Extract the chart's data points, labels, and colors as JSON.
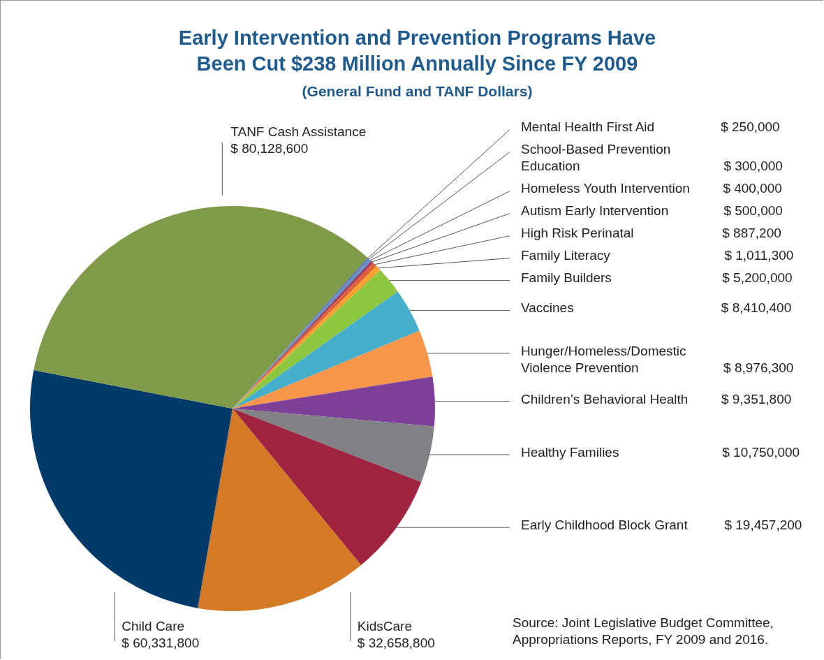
{
  "chart_data": {
    "type": "pie",
    "title": "Early Intervention and Prevention Programs Have Been Cut $238 Million Annually Since FY 2009",
    "subtitle": "(General Fund and TANF Dollars)",
    "categories": [
      "Mental Health First Aid",
      "School-Based Prevention Education",
      "Homeless Youth Intervention",
      "Autism Early Intervention",
      "High Risk Perinatal",
      "Family Literacy",
      "Family Builders",
      "Vaccines",
      "Hunger/Homeless/Domestic Violence Prevention",
      "Children’s Behavioral Health",
      "Healthy Families",
      "Early Childhood Block Grant",
      "KidsCare",
      "Child Care",
      "TANF Cash Assistance"
    ],
    "values": [
      250000,
      300000,
      400000,
      500000,
      887200,
      1011300,
      5200000,
      8410400,
      8976300,
      9351800,
      10750000,
      19457200,
      32658800,
      60331800,
      80128600
    ],
    "value_labels": [
      "$ 250,000",
      "$ 300,000",
      "$ 400,000",
      "$ 500,000",
      "$ 887,200",
      "$ 1,011,300",
      "$ 5,200,000",
      "$ 8,410,400",
      "$ 8,976,300",
      "$ 9,351,800",
      "$ 10,750,000",
      "$ 19,457,200",
      "$ 32,658,800",
      "$ 60,331,800",
      "$ 80,128,600"
    ],
    "colors": [
      "#4a6fb0",
      "#6b7fb5",
      "#5d8ec8",
      "#9b3a5e",
      "#e0603a",
      "#f9a12e",
      "#8dc63f",
      "#45aecb",
      "#f7964a",
      "#7d3f98",
      "#808285",
      "#a0243f",
      "#d47a27",
      "#003a6b",
      "#7f9a48"
    ],
    "legend": false,
    "annotations": [
      "Source: Joint Legislative Budget Committee, Appropriations Reports, FY 2009 and 2016."
    ]
  }
}
